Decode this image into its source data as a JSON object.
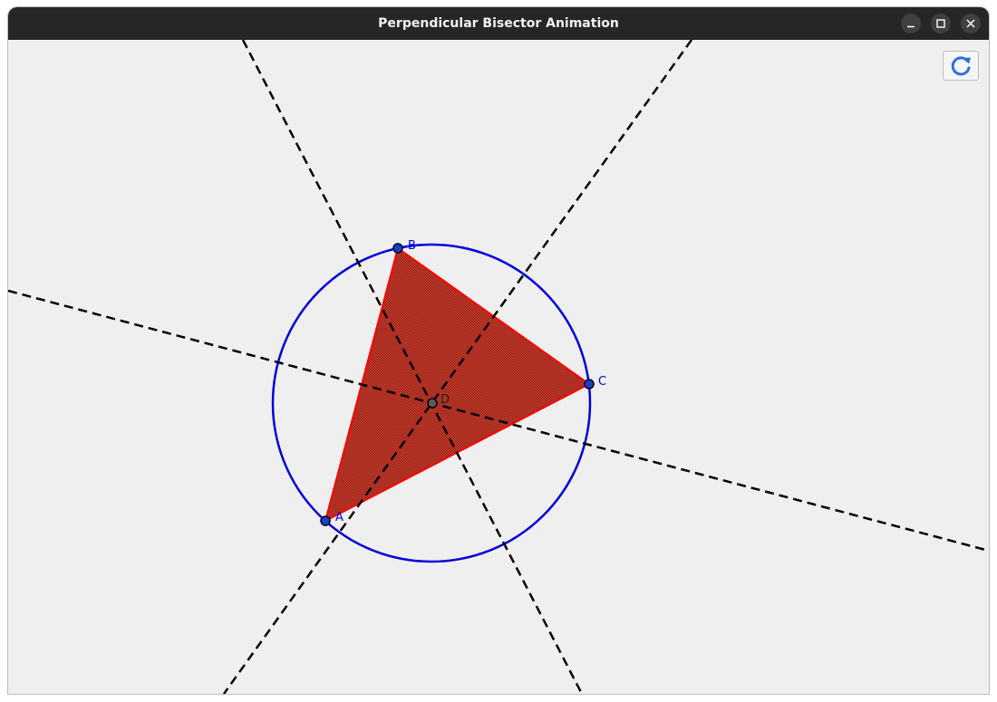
{
  "window": {
    "title": "Perpendicular Bisector Animation"
  },
  "toolbar": {
    "refresh_icon": "refresh-icon"
  },
  "geometry": {
    "triangle_fill": "#c0392b",
    "triangle_edge": "#ff0000",
    "circle_color": "#0000dd",
    "bisector_color": "#000000",
    "points": [
      {
        "label": "A"
      },
      {
        "label": "B"
      },
      {
        "label": "C"
      },
      {
        "label": "D"
      }
    ]
  }
}
